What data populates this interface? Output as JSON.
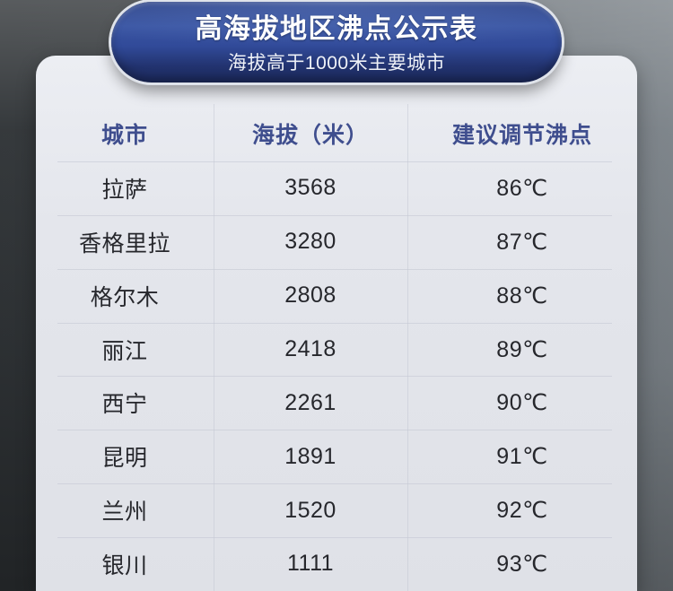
{
  "banner": {
    "title": "高海拔地区沸点公示表",
    "subtitle": "海拔高于1000米主要城市"
  },
  "table": {
    "columns": [
      "城市",
      "海拔（米）",
      "建议调节沸点"
    ],
    "rows": [
      {
        "city": "拉萨",
        "altitude": "3568",
        "boiling": "86℃"
      },
      {
        "city": "香格里拉",
        "altitude": "3280",
        "boiling": "87℃"
      },
      {
        "city": "格尔木",
        "altitude": "2808",
        "boiling": "88℃"
      },
      {
        "city": "丽江",
        "altitude": "2418",
        "boiling": "89℃"
      },
      {
        "city": "西宁",
        "altitude": "2261",
        "boiling": "90℃"
      },
      {
        "city": "昆明",
        "altitude": "1891",
        "boiling": "91℃"
      },
      {
        "city": "兰州",
        "altitude": "1520",
        "boiling": "92℃"
      },
      {
        "city": "银川",
        "altitude": "1111",
        "boiling": "93℃"
      }
    ]
  },
  "chart_data": {
    "type": "table",
    "title": "高海拔地区沸点公示表",
    "subtitle": "海拔高于1000米主要城市",
    "columns": [
      "城市",
      "海拔（米）",
      "建议调节沸点"
    ],
    "rows": [
      [
        "拉萨",
        3568,
        "86℃"
      ],
      [
        "香格里拉",
        3280,
        "87℃"
      ],
      [
        "格尔木",
        2808,
        "88℃"
      ],
      [
        "丽江",
        2418,
        "89℃"
      ],
      [
        "西宁",
        2261,
        "90℃"
      ],
      [
        "昆明",
        1891,
        "91℃"
      ],
      [
        "兰州",
        1520,
        "92℃"
      ],
      [
        "银川",
        1111,
        "93℃"
      ]
    ]
  },
  "colors": {
    "banner_blue": "#32499a",
    "banner_blue_dark": "#1c2a5e",
    "banner_rim": "#dfe3ea",
    "header_text": "#3f4e8e",
    "cell_text": "#26272c",
    "card_bg": "#e4e6ec",
    "backdrop_dark": "#2f3336",
    "backdrop_light": "#7b8288"
  }
}
